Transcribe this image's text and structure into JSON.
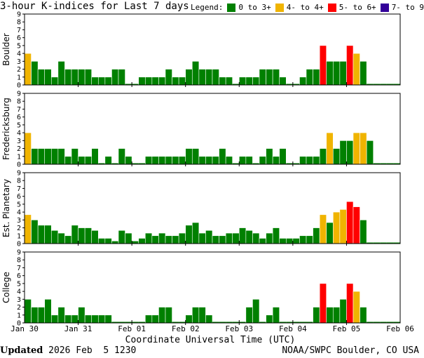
{
  "title": "3-hour K-indices for Last 7 days",
  "legend": {
    "label": "Legend:",
    "items": [
      {
        "text": "0 to 3+",
        "color": "#008000"
      },
      {
        "text": "4- to 4+",
        "color": "#f0b400"
      },
      {
        "text": "5- to 6+",
        "color": "#ff0000"
      },
      {
        "text": "7- to 9",
        "color": "#330099"
      }
    ]
  },
  "footer": {
    "updated_label": "Updated",
    "updated_value": " 2026 Feb  5 1230",
    "source": "NOAA/SWPC Boulder, CO USA"
  },
  "chart_data": {
    "type": "bar",
    "xlabel": "Coordinate Universal Time (UTC)",
    "x_ticks": [
      "Jan 30",
      "Jan 31",
      "Feb 01",
      "Feb 02",
      "Feb 03",
      "Feb 04",
      "Feb 05",
      "Feb 06"
    ],
    "ylim": [
      0,
      9
    ],
    "y_ticks": [
      0,
      1,
      2,
      3,
      4,
      5,
      6,
      7,
      8,
      9
    ],
    "intervals_per_day": 8,
    "color_thresholds": {
      "green_below": 3.67,
      "yellow_below": 4.67,
      "red_below": 6.67
    },
    "series": [
      {
        "name": "Boulder",
        "values": [
          4,
          3,
          2,
          2,
          1,
          3,
          2,
          2,
          2,
          2,
          1,
          1,
          1,
          2,
          2,
          0,
          0,
          1,
          1,
          1,
          1,
          2,
          1,
          1,
          2,
          3,
          2,
          2,
          2,
          1,
          1,
          0,
          1,
          1,
          1,
          2,
          2,
          2,
          1,
          0,
          0,
          1,
          2,
          2,
          5,
          3,
          3,
          3,
          5,
          4,
          3,
          0,
          0,
          0,
          0,
          0
        ]
      },
      {
        "name": "Fredericksburg",
        "values": [
          4,
          2,
          2,
          2,
          2,
          2,
          1,
          2,
          1,
          1,
          2,
          0,
          1,
          0,
          2,
          1,
          0,
          0,
          1,
          1,
          1,
          1,
          1,
          1,
          2,
          2,
          1,
          1,
          1,
          2,
          1,
          0,
          1,
          1,
          0,
          1,
          2,
          1,
          2,
          0,
          0,
          1,
          1,
          1,
          2,
          4,
          2,
          3,
          3,
          4,
          4,
          3,
          0,
          0,
          0,
          0
        ]
      },
      {
        "name": "Est. Planetary",
        "values": [
          3.67,
          3,
          2.33,
          2.33,
          1.67,
          1.33,
          1,
          2.33,
          2,
          2,
          1.67,
          0.67,
          0.67,
          0.33,
          1.67,
          1.33,
          0.33,
          0.67,
          1.33,
          1,
          1.33,
          1,
          1,
          1.33,
          2.33,
          2.67,
          1.33,
          1.67,
          1,
          1,
          1.33,
          1.33,
          2,
          1.67,
          1.33,
          0.67,
          1.33,
          2,
          0.67,
          0.67,
          0.67,
          1,
          1,
          2,
          3.67,
          2.67,
          4,
          4.33,
          5.33,
          4.67,
          3,
          0,
          0,
          0,
          0,
          0
        ]
      },
      {
        "name": "College",
        "values": [
          3,
          2,
          2,
          3,
          1,
          2,
          1,
          1,
          2,
          1,
          1,
          1,
          1,
          0,
          0,
          0,
          0,
          0,
          1,
          1,
          2,
          2,
          0,
          0,
          1,
          2,
          2,
          1,
          0,
          0,
          0,
          0,
          0,
          2,
          3,
          0,
          1,
          2,
          0,
          0,
          0,
          0,
          0,
          2,
          5,
          2,
          2,
          3,
          5,
          4,
          2,
          0,
          0,
          0,
          0,
          0
        ]
      }
    ]
  }
}
